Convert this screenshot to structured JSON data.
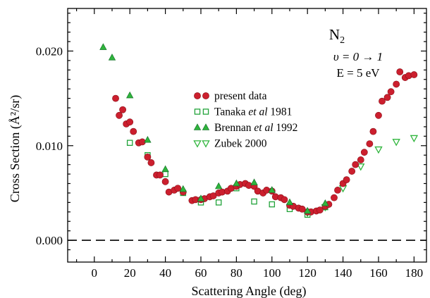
{
  "chart_data": {
    "type": "scatter",
    "title": "N2",
    "annotations": [
      "υ = 0 → 1",
      "E = 5 eV"
    ],
    "xlabel": "Scattering Angle (deg)",
    "ylabel": "Cross Section (Å²/sr)",
    "xlim": [
      -15,
      187
    ],
    "ylim": [
      -0.0023,
      0.0245
    ],
    "xticks": [
      0,
      20,
      40,
      60,
      80,
      100,
      120,
      140,
      160,
      180
    ],
    "yticks": [
      0.0,
      0.01,
      0.02
    ],
    "xtick_labels": [
      "0",
      "20",
      "40",
      "60",
      "80",
      "100",
      "120",
      "140",
      "160",
      "180"
    ],
    "ytick_labels": [
      "0.000",
      "0.010",
      "0.020"
    ],
    "reference_line": {
      "y": 0.0,
      "style": "dashed"
    },
    "grid": false,
    "legend": "center",
    "series": [
      {
        "name": "present data",
        "marker": "filled-circle",
        "color": "#cc1f2e",
        "x": [
          12,
          14,
          16,
          18,
          20,
          22,
          25,
          27,
          30,
          32,
          35,
          37,
          40,
          42,
          45,
          47,
          50,
          55,
          57,
          60,
          62,
          65,
          67,
          70,
          72,
          75,
          77,
          80,
          82,
          85,
          87,
          90,
          92,
          95,
          97,
          100,
          102,
          105,
          107,
          110,
          112,
          115,
          117,
          120,
          122,
          125,
          127,
          130,
          132,
          135,
          137,
          140,
          142,
          145,
          147,
          150,
          152,
          155,
          157,
          160,
          162,
          165,
          167,
          170,
          172,
          175,
          177,
          180
        ],
        "y": [
          0.015,
          0.0132,
          0.0138,
          0.0123,
          0.0125,
          0.0115,
          0.0103,
          0.0104,
          0.0088,
          0.0082,
          0.0069,
          0.0069,
          0.0062,
          0.0051,
          0.0053,
          0.0055,
          0.0051,
          0.0042,
          0.0043,
          0.0043,
          0.0044,
          0.0046,
          0.0047,
          0.005,
          0.0051,
          0.0052,
          0.0055,
          0.0057,
          0.0059,
          0.006,
          0.0058,
          0.0057,
          0.0052,
          0.005,
          0.0053,
          0.0052,
          0.0046,
          0.0045,
          0.0043,
          0.0037,
          0.0036,
          0.0034,
          0.0033,
          0.003,
          0.003,
          0.0031,
          0.0032,
          0.0036,
          0.0038,
          0.0045,
          0.0053,
          0.006,
          0.0064,
          0.0073,
          0.008,
          0.0085,
          0.0093,
          0.0102,
          0.0115,
          0.0132,
          0.0147,
          0.0151,
          0.0157,
          0.0165,
          0.0178,
          0.0172,
          0.0174,
          0.0175
        ]
      },
      {
        "name": "Tanaka et al 1981",
        "marker": "open-square",
        "color": "#22a33a",
        "x": [
          20,
          30,
          40,
          50,
          60,
          70,
          80,
          90,
          100,
          110,
          120,
          130
        ],
        "y": [
          0.0103,
          0.009,
          0.007,
          0.005,
          0.004,
          0.004,
          0.0055,
          0.0041,
          0.0038,
          0.0033,
          0.0027,
          0.0035
        ]
      },
      {
        "name": "Brennan et al 1992",
        "marker": "filled-triangle-up",
        "color": "#2fb53c",
        "x": [
          5,
          10,
          20,
          30,
          40,
          50,
          60,
          70,
          80,
          90,
          100,
          110,
          120,
          130
        ],
        "y": [
          0.0204,
          0.0193,
          0.0153,
          0.0106,
          0.0075,
          0.0054,
          0.0044,
          0.0057,
          0.006,
          0.0061,
          0.0053,
          0.004,
          0.0031,
          0.0039
        ]
      },
      {
        "name": "Zubek 2000",
        "marker": "open-triangle-down",
        "color": "#2fb53c",
        "x": [
          120,
          130,
          140,
          150,
          160,
          170,
          180
        ],
        "y": [
          0.0029,
          0.0035,
          0.0055,
          0.0078,
          0.0096,
          0.0104,
          0.0108
        ]
      }
    ]
  }
}
